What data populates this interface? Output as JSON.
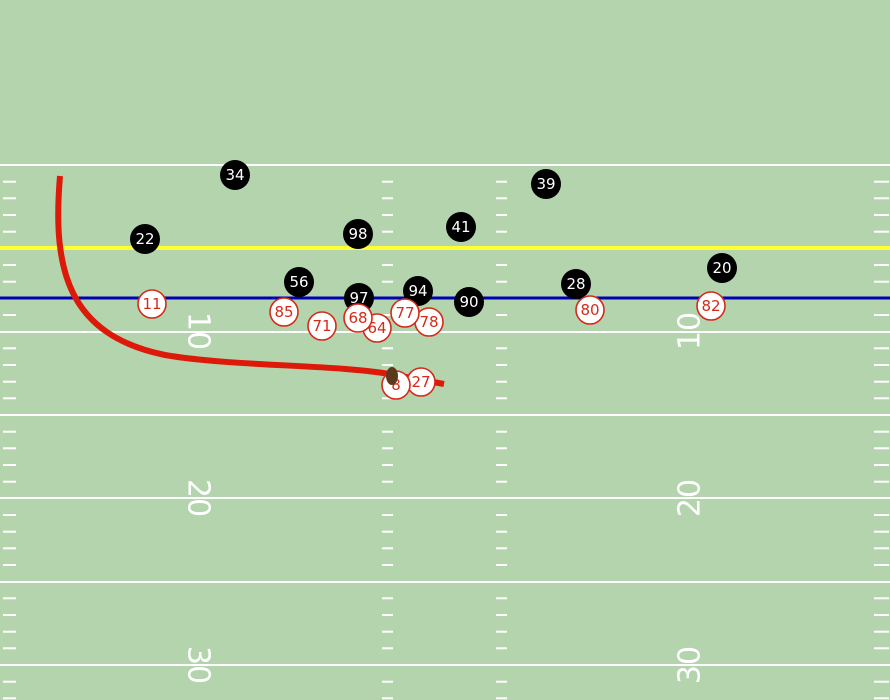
{
  "field": {
    "colors": {
      "turf": "#b3d4ad",
      "lines": "#ffffff",
      "first_down_line": "#ffff33",
      "line_of_scrimmage": "#0000b3",
      "route": "#dd1a0a",
      "offense_fill": "#ffffff",
      "offense_stroke": "#d42a1a",
      "defense_fill": "#000000",
      "defense_text": "#ffffff",
      "ball": "#5a3a1a"
    },
    "yard_numbers": [
      "10",
      "20",
      "30"
    ]
  },
  "offense": [
    {
      "number": "11"
    },
    {
      "number": "85"
    },
    {
      "number": "71"
    },
    {
      "number": "68"
    },
    {
      "number": "64"
    },
    {
      "number": "77"
    },
    {
      "number": "78"
    },
    {
      "number": "80"
    },
    {
      "number": "82"
    },
    {
      "number": "8"
    },
    {
      "number": "27"
    }
  ],
  "defense": [
    {
      "number": "34"
    },
    {
      "number": "39"
    },
    {
      "number": "22"
    },
    {
      "number": "98"
    },
    {
      "number": "41"
    },
    {
      "number": "20"
    },
    {
      "number": "56"
    },
    {
      "number": "97"
    },
    {
      "number": "94"
    },
    {
      "number": "90"
    },
    {
      "number": "28"
    }
  ]
}
